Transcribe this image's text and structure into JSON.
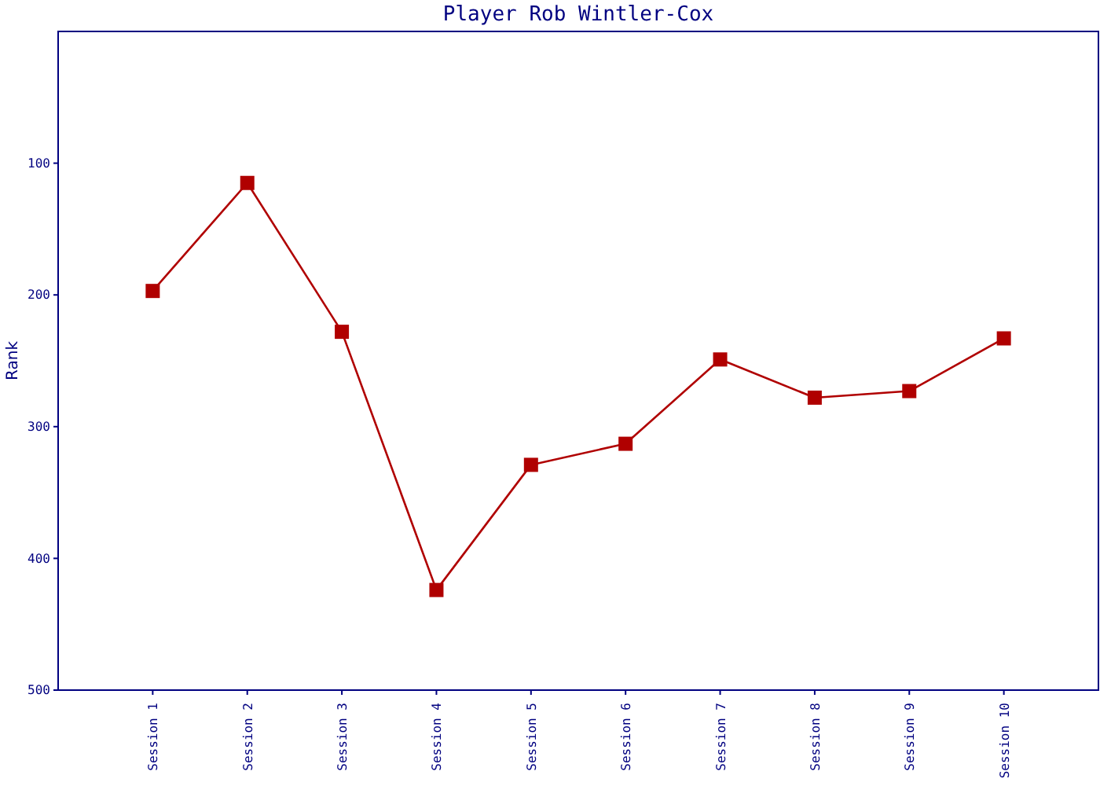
{
  "chart_data": {
    "type": "line",
    "title": "Player Rob Wintler-Cox",
    "ylabel": "Rank",
    "categories": [
      "Session 1",
      "Session 2",
      "Session 3",
      "Session 4",
      "Session 5",
      "Session 6",
      "Session 7",
      "Session 8",
      "Session 9",
      "Session 10"
    ],
    "series": [
      {
        "color": "#b00000",
        "values": [
          197,
          115,
          228,
          424,
          329,
          313,
          249,
          278,
          273,
          233
        ]
      }
    ],
    "ylim": [
      500,
      0
    ],
    "yticks": [
      100,
      200,
      300,
      400,
      500
    ],
    "marker": "square",
    "line_style": "solid",
    "grid": false
  }
}
